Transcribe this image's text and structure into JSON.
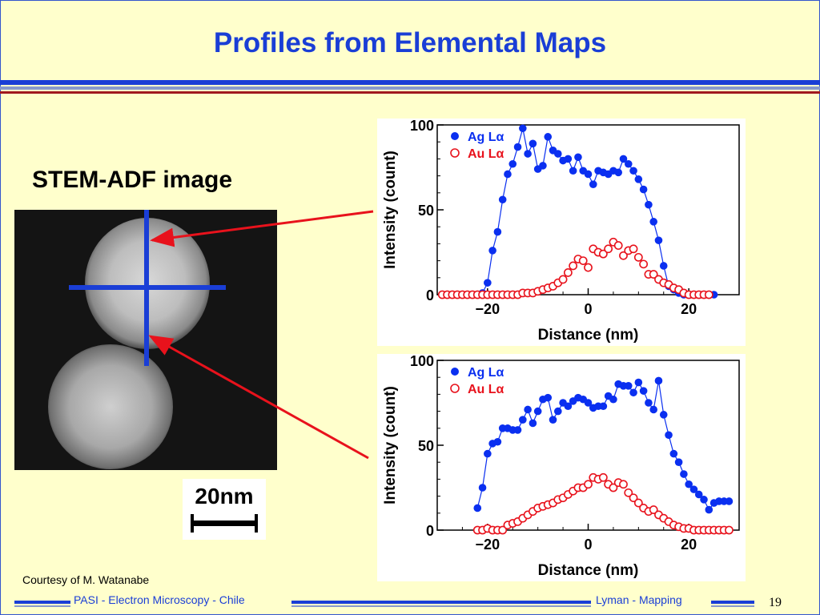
{
  "slide": {
    "title": "Profiles from Elemental Maps",
    "stem_label": "STEM-ADF image",
    "scale_bar": "20nm",
    "courtesy": "Courtesy of M. Watanabe",
    "footer_left": "PASI - Electron Microscopy - Chile",
    "footer_right": "Lyman - Mapping",
    "page_number": "19"
  },
  "colors": {
    "title": "#1a3ed6",
    "background": "#FFFFCC",
    "ag": "#0a2ff0",
    "au": "#e8121c",
    "arrow": "#e8121c",
    "crosshair": "#1a3ed6"
  },
  "chart_data": [
    {
      "type": "scatter",
      "xlabel": "Distance (nm)",
      "ylabel": "Intensity (count)",
      "xlim": [
        -30,
        30
      ],
      "ylim": [
        0,
        100
      ],
      "xticks": [
        "−20",
        "0",
        "20"
      ],
      "yticks": [
        "0",
        "50",
        "100"
      ],
      "legend_position": "top-left",
      "series": [
        {
          "name": "Ag Lα",
          "marker": "filled-circle",
          "connected": true,
          "x": [
            -28,
            -27,
            -26,
            -25,
            -24,
            -23,
            -22,
            -21,
            -20,
            -19,
            -18,
            -17,
            -16,
            -15,
            -14,
            -13,
            -12,
            -11,
            -10,
            -9,
            -8,
            -7,
            -6,
            -5,
            -4,
            -3,
            -2,
            -1,
            0,
            1,
            2,
            3,
            4,
            5,
            6,
            7,
            8,
            9,
            10,
            11,
            12,
            13,
            14,
            15,
            16,
            17,
            18,
            19,
            20,
            21,
            22,
            23,
            24,
            25
          ],
          "y": [
            0,
            0,
            0,
            0,
            0,
            0,
            0,
            1,
            7,
            26,
            37,
            56,
            71,
            77,
            87,
            98,
            83,
            89,
            74,
            76,
            93,
            85,
            83,
            79,
            80,
            73,
            81,
            73,
            71,
            65,
            73,
            72,
            71,
            73,
            72,
            80,
            77,
            73,
            68,
            62,
            53,
            43,
            32,
            17,
            5,
            3,
            1,
            0,
            0,
            0,
            0,
            0,
            0,
            0
          ]
        },
        {
          "name": "Au Lα",
          "marker": "open-circle",
          "connected": false,
          "x": [
            -29,
            -28,
            -27,
            -26,
            -25,
            -24,
            -23,
            -22,
            -21,
            -20,
            -19,
            -18,
            -17,
            -16,
            -15,
            -14,
            -13,
            -12,
            -11,
            -10,
            -9,
            -8,
            -7,
            -6,
            -5,
            -4,
            -3,
            -2,
            -1,
            0,
            1,
            2,
            3,
            4,
            5,
            6,
            7,
            8,
            9,
            10,
            11,
            12,
            13,
            14,
            15,
            16,
            17,
            18,
            19,
            20,
            21,
            22,
            23,
            24
          ],
          "y": [
            0,
            0,
            0,
            0,
            0,
            0,
            0,
            0,
            0,
            0,
            0,
            0,
            0,
            0,
            0,
            0,
            1,
            1,
            1,
            2,
            3,
            4,
            5,
            7,
            9,
            13,
            17,
            21,
            20,
            16,
            27,
            25,
            24,
            27,
            31,
            29,
            23,
            26,
            27,
            22,
            18,
            12,
            12,
            9,
            7,
            6,
            4,
            3,
            1,
            0,
            0,
            0,
            0,
            0
          ]
        }
      ]
    },
    {
      "type": "scatter",
      "xlabel": "Distance (nm)",
      "ylabel": "Intensity (count)",
      "xlim": [
        -30,
        30
      ],
      "ylim": [
        0,
        100
      ],
      "xticks": [
        "−20",
        "0",
        "20"
      ],
      "yticks": [
        "0",
        "50",
        "100"
      ],
      "legend_position": "top-left",
      "series": [
        {
          "name": "Ag Lα",
          "marker": "filled-circle",
          "connected": true,
          "x": [
            -22,
            -21,
            -20,
            -19,
            -18,
            -17,
            -16,
            -15,
            -14,
            -13,
            -12,
            -11,
            -10,
            -9,
            -8,
            -7,
            -6,
            -5,
            -4,
            -3,
            -2,
            -1,
            0,
            1,
            2,
            3,
            4,
            5,
            6,
            7,
            8,
            9,
            10,
            11,
            12,
            13,
            14,
            15,
            16,
            17,
            18,
            19,
            20,
            21,
            22,
            23,
            24,
            25,
            26,
            27,
            28
          ],
          "y": [
            13,
            25,
            45,
            51,
            52,
            60,
            60,
            59,
            59,
            65,
            71,
            63,
            70,
            77,
            78,
            65,
            70,
            75,
            73,
            76,
            78,
            77,
            75,
            72,
            73,
            73,
            79,
            77,
            86,
            85,
            85,
            81,
            87,
            82,
            75,
            71,
            88,
            68,
            56,
            45,
            40,
            33,
            27,
            24,
            21,
            18,
            12,
            16,
            17,
            17,
            17
          ]
        },
        {
          "name": "Au Lα",
          "marker": "open-circle",
          "connected": false,
          "x": [
            -22,
            -21,
            -20,
            -19,
            -18,
            -17,
            -16,
            -15,
            -14,
            -13,
            -12,
            -11,
            -10,
            -9,
            -8,
            -7,
            -6,
            -5,
            -4,
            -3,
            -2,
            -1,
            0,
            1,
            2,
            3,
            4,
            5,
            6,
            7,
            8,
            9,
            10,
            11,
            12,
            13,
            14,
            15,
            16,
            17,
            18,
            19,
            20,
            21,
            22,
            23,
            24,
            25,
            26,
            27,
            28
          ],
          "y": [
            0,
            0,
            1,
            0,
            0,
            0,
            3,
            4,
            5,
            7,
            9,
            11,
            13,
            14,
            15,
            16,
            18,
            19,
            21,
            23,
            25,
            25,
            27,
            31,
            30,
            31,
            27,
            25,
            28,
            27,
            22,
            19,
            16,
            13,
            11,
            12,
            9,
            7,
            5,
            3,
            2,
            1,
            1,
            0,
            0,
            0,
            0,
            0,
            0,
            0,
            0
          ]
        }
      ]
    }
  ]
}
